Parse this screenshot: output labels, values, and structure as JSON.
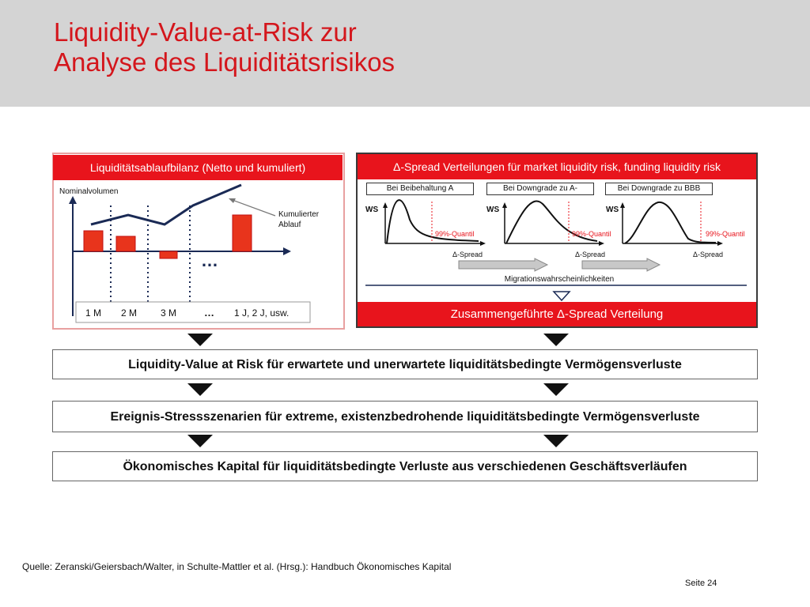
{
  "title": {
    "line1": "Liquidity-Value-at-Risk zur",
    "line2": "Analyse des Liquiditätsrisikos"
  },
  "left_panel": {
    "header": "Liquiditätsablaufbilanz (Netto und kumuliert)",
    "y_label": "Nominalvolumen",
    "annotation_line1": "Kumulierter",
    "annotation_line2": "Ablauf",
    "ellipsis": "…",
    "periods": [
      "1 M",
      "2 M",
      "3 M",
      "…",
      "1 J, 2 J, usw."
    ]
  },
  "right_panel": {
    "header": "Δ-Spread Verteilungen für market liquidity risk, funding liquidity risk",
    "scenarios": [
      "Bei Beibehaltung A",
      "Bei Downgrade zu A-",
      "Bei Downgrade zu BBB"
    ],
    "y_label": "WS",
    "quantile_label": "99%-Quantil",
    "x_label": "Δ-Spread",
    "migration_label": "Migrationswahrscheinlichkeiten",
    "footer": "Zusammengeführte Δ-Spread Verteilung"
  },
  "boxes": [
    "Liquidity-Value at Risk für erwartete und unerwartete liquiditätsbedingte Vermögensverluste",
    "Ereignis-Stressszenarien für extreme, existenzbedrohende liquiditätsbedingte Vermögensverluste",
    "Ökonomisches Kapital für liquiditätsbedingte Verluste aus verschiedenen Geschäftsverläufen"
  ],
  "source": "Quelle: Zeranski/Geiersbach/Walter, in Schulte-Mattler et al. (Hrsg.): Handbuch Ökonomisches Kapital",
  "page_label": "Seite 24",
  "colors": {
    "accent": "#e8141c",
    "header_bg": "#d4d4d4"
  },
  "net_flow_bars": [
    {
      "period": "1 M",
      "direction": "up"
    },
    {
      "period": "2 M",
      "direction": "up"
    },
    {
      "period": "3 M",
      "direction": "down"
    },
    {
      "period": "1 J, 2 J, usw.",
      "direction": "up"
    }
  ]
}
